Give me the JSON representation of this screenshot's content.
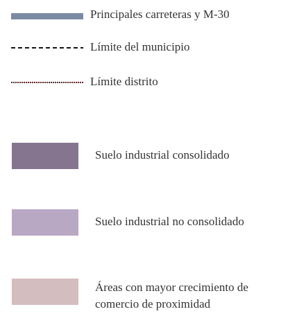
{
  "legend": {
    "items": [
      {
        "label": "Principales carreteras y M-30"
      },
      {
        "label": "Límite del municipio"
      },
      {
        "label": "Límite distrito"
      },
      {
        "label": "Suelo industrial consolidado"
      },
      {
        "label": "Suelo industrial no consolidado"
      },
      {
        "label": "Áreas con mayor crecimiento de comercio de proximidad"
      }
    ]
  }
}
